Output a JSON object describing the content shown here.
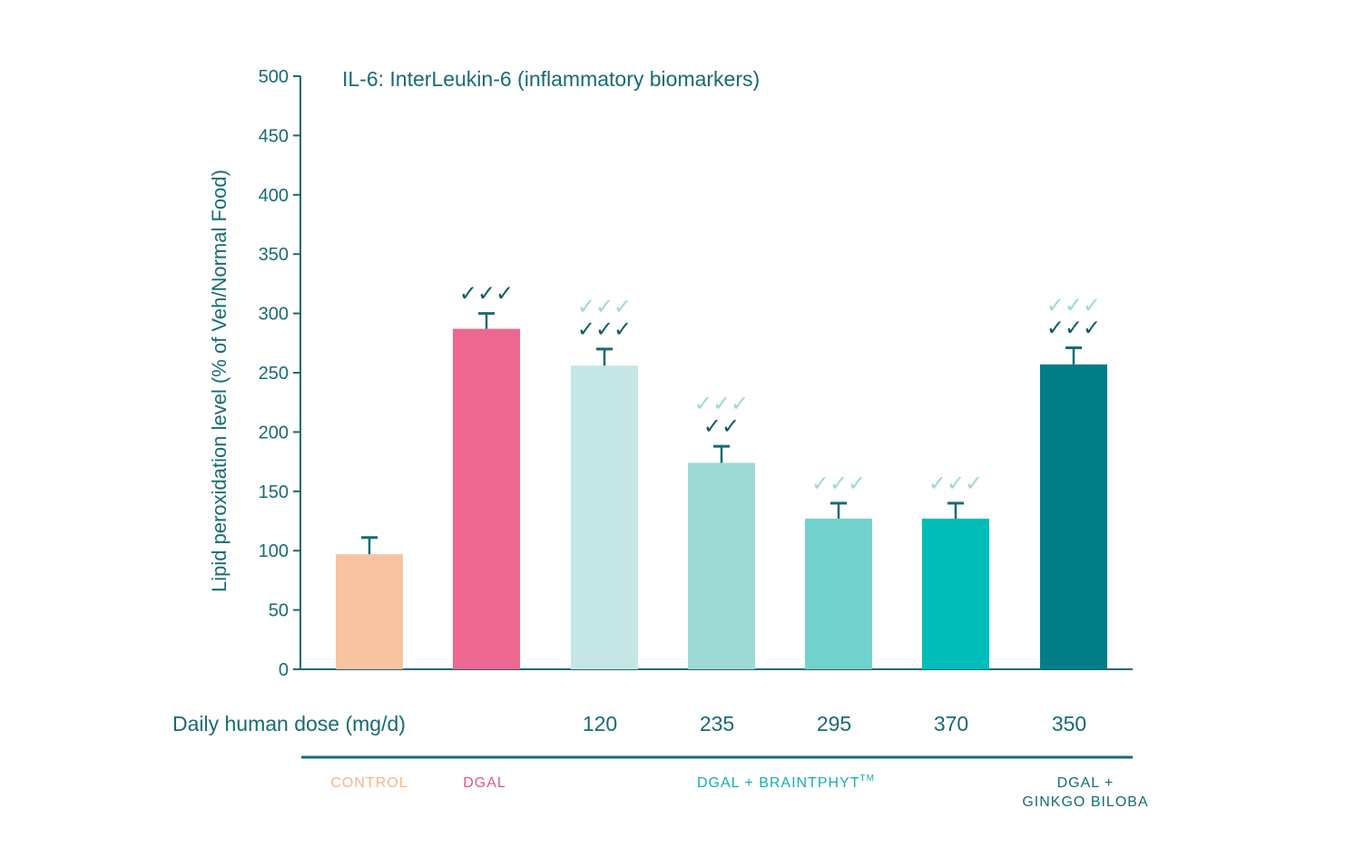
{
  "chart_data": {
    "type": "bar",
    "title": "IL-6: InterLeukin-6 (inflammatory biomarkers)",
    "ylabel": "Lipid peroxidation level (% of Veh/Normal Food)",
    "xlabel": "",
    "ylim": [
      0,
      500
    ],
    "yticks": [
      0,
      50,
      100,
      150,
      200,
      250,
      300,
      350,
      400,
      450,
      500
    ],
    "axis_color": "#176b72",
    "check_dark": "#0e5a61",
    "check_light": "#9ed9d5",
    "bars": [
      {
        "value": 97,
        "error": 14,
        "color": "#f7c3a1",
        "dose": "",
        "checks_dark": "",
        "checks_light": ""
      },
      {
        "value": 287,
        "error": 13,
        "color": "#ec6890",
        "dose": "",
        "checks_dark": "✓✓✓",
        "checks_light": ""
      },
      {
        "value": 256,
        "error": 14,
        "color": "#c4e6e5",
        "dose": "120",
        "checks_dark": "✓✓✓",
        "checks_light": "✓✓✓"
      },
      {
        "value": 174,
        "error": 14,
        "color": "#9ed9d6",
        "dose": "235",
        "checks_dark": "✓✓",
        "checks_light": "✓✓✓"
      },
      {
        "value": 127,
        "error": 13,
        "color": "#73d1cc",
        "dose": "295",
        "checks_dark": "",
        "checks_light": "✓✓✓"
      },
      {
        "value": 127,
        "error": 13,
        "color": "#00bdb8",
        "dose": "370",
        "checks_dark": "",
        "checks_light": "✓✓✓"
      },
      {
        "value": 257,
        "error": 14,
        "color": "#007d86",
        "dose": "350",
        "checks_dark": "✓✓✓",
        "checks_light": "✓✓✓"
      }
    ],
    "dose_row_label": "Daily human dose (mg/d)",
    "groups": [
      {
        "lines": [
          "CONTROL"
        ],
        "color": "#f5b48d"
      },
      {
        "lines": [
          "DGAL"
        ],
        "color": "#e4547f"
      },
      {
        "lines": [
          "DGAL + BRAINTPHYT"
        ],
        "sup": "TM",
        "color": "#12b1ab"
      },
      {
        "lines": [
          "DGAL +",
          "GINKGO BILOBA"
        ],
        "color": "#176b72"
      }
    ]
  }
}
